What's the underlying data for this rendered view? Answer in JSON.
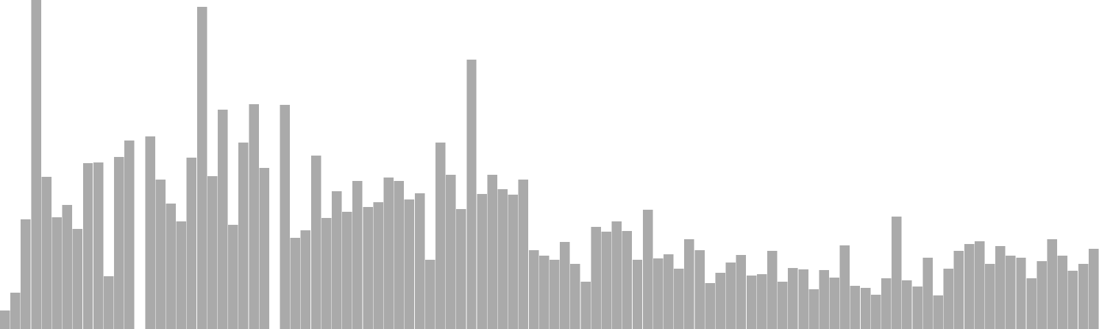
{
  "chart_data": {
    "type": "bar",
    "title": "",
    "xlabel": "",
    "ylabel": "",
    "ylim": [
      0,
      480
    ],
    "grid": false,
    "legend": "none",
    "bar_color": "#aaaaaa",
    "values": [
      27,
      53,
      160,
      480,
      222,
      163,
      181,
      146,
      242,
      243,
      77,
      251,
      275,
      0,
      281,
      218,
      183,
      157,
      250,
      470,
      223,
      320,
      152,
      272,
      328,
      235,
      0,
      327,
      133,
      144,
      253,
      162,
      201,
      171,
      216,
      178,
      185,
      221,
      216,
      189,
      198,
      101,
      272,
      225,
      175,
      393,
      197,
      225,
      204,
      196,
      218,
      115,
      107,
      101,
      127,
      95,
      69,
      149,
      142,
      157,
      143,
      101,
      174,
      103,
      109,
      88,
      131,
      115,
      67,
      82,
      97,
      108,
      78,
      80,
      114,
      69,
      89,
      87,
      58,
      86,
      75,
      122,
      63,
      60,
      50,
      74,
      164,
      71,
      62,
      104,
      49,
      88,
      114,
      124,
      128,
      95,
      121,
      107,
      104,
      74,
      99,
      131,
      107,
      85,
      95,
      117
    ]
  }
}
